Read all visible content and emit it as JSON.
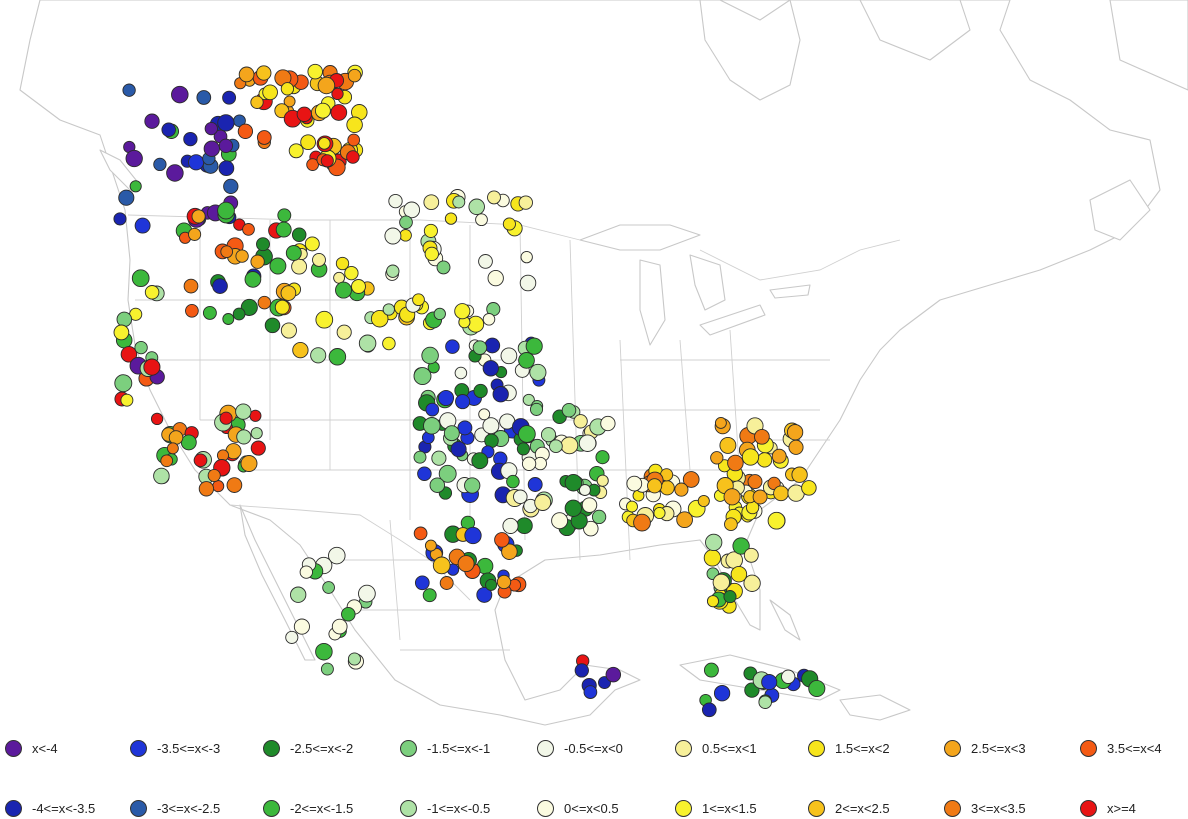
{
  "legend": {
    "items": [
      {
        "label": "x<-4",
        "color": "#5b1a9c"
      },
      {
        "label": "-3.5<=x<-3",
        "color": "#1f35d8"
      },
      {
        "label": "-2.5<=x<-2",
        "color": "#1f8a2a"
      },
      {
        "label": "-1.5<=x<-1",
        "color": "#7ccf7e"
      },
      {
        "label": "-0.5<=x<0",
        "color": "#f2f7e8"
      },
      {
        "label": "0.5<=x<1",
        "color": "#f7f09a"
      },
      {
        "label": "1.5<=x<2",
        "color": "#f7e51c"
      },
      {
        "label": "2.5<=x<3",
        "color": "#f4a51c"
      },
      {
        "label": "3.5<=x<4",
        "color": "#f45a14"
      },
      {
        "label": "-4<=x<-3.5",
        "color": "#1a24b0"
      },
      {
        "label": "-3<=x<-2.5",
        "color": "#2a5aa8"
      },
      {
        "label": "-2<=x<-1.5",
        "color": "#3cb83c"
      },
      {
        "label": "-1<=x<-0.5",
        "color": "#aee2a6"
      },
      {
        "label": "0<=x<0.5",
        "color": "#fbfbe0"
      },
      {
        "label": "1<=x<1.5",
        "color": "#f8f22e"
      },
      {
        "label": "2<=x<2.5",
        "color": "#f7c21c"
      },
      {
        "label": "3<=x<3.5",
        "color": "#f07a14"
      },
      {
        "label": "x>=4",
        "color": "#e81414"
      }
    ]
  }
}
